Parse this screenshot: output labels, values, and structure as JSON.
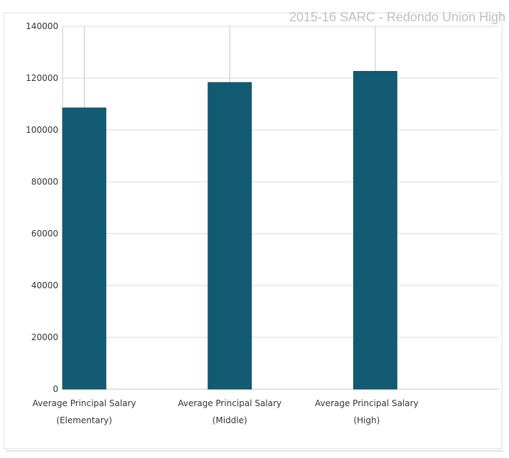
{
  "chart_data": {
    "type": "bar",
    "title": "2015-16 SARC - Redondo Union High",
    "categories": [
      [
        "Average Principal Salary",
        "(Elementary)"
      ],
      [
        "Average Principal Salary",
        "(Middle)"
      ],
      [
        "Average Principal Salary",
        "(High)"
      ]
    ],
    "values": [
      108500,
      118300,
      122600
    ],
    "ylim": [
      0,
      140000
    ],
    "yticks": [
      0,
      20000,
      40000,
      60000,
      80000,
      100000,
      120000,
      140000
    ],
    "grid": true,
    "xlabel": "",
    "ylabel": "",
    "colors": {
      "bar": "#135a73",
      "grid": "#d9d9d9",
      "axis": "#c8c8c8",
      "text": "#333333",
      "title": "#bfbfbf"
    }
  }
}
